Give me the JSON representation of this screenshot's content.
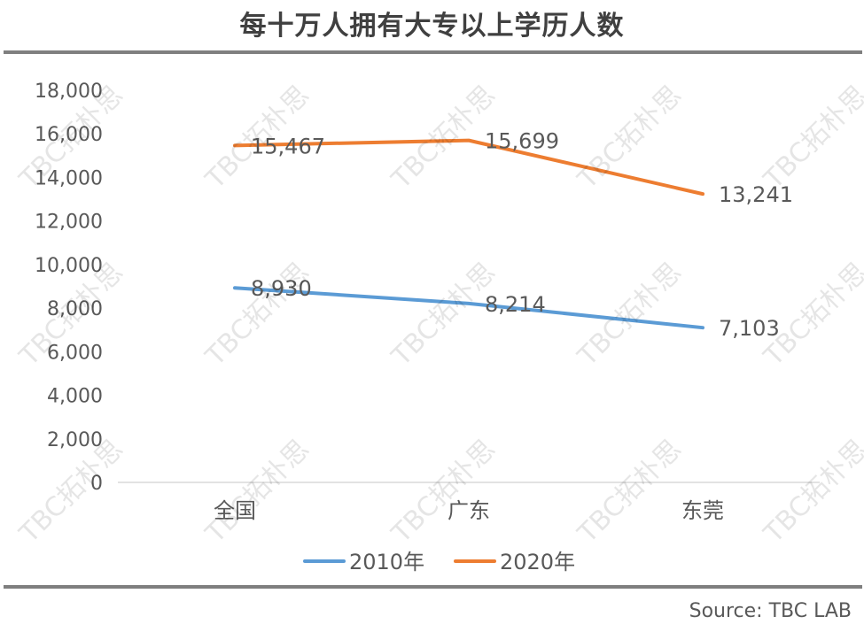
{
  "title": "每十万人拥有大专以上学历人数",
  "source": "Source: TBC LAB",
  "watermark_text": "TBC拓朴思",
  "chart_data": {
    "type": "line",
    "title": "每十万人拥有大专以上学历人数",
    "categories": [
      "全国",
      "广东",
      "东莞"
    ],
    "ylim": [
      0,
      18000
    ],
    "y_ticks": [
      0,
      2000,
      4000,
      6000,
      8000,
      10000,
      12000,
      14000,
      16000,
      18000
    ],
    "y_tick_labels": [
      "0",
      "2,000",
      "4,000",
      "6,000",
      "8,000",
      "10,000",
      "12,000",
      "14,000",
      "16,000",
      "18,000"
    ],
    "grid": false,
    "legend": "bottom",
    "series": [
      {
        "name": "2010年",
        "color": "#5b9bd5",
        "values": [
          8930,
          8214,
          7103
        ],
        "labels": [
          "8,930",
          "8,214",
          "7,103"
        ]
      },
      {
        "name": "2020年",
        "color": "#ed7d31",
        "values": [
          15467,
          15699,
          13241
        ],
        "labels": [
          "15,467",
          "15,699",
          "13,241"
        ]
      }
    ]
  }
}
